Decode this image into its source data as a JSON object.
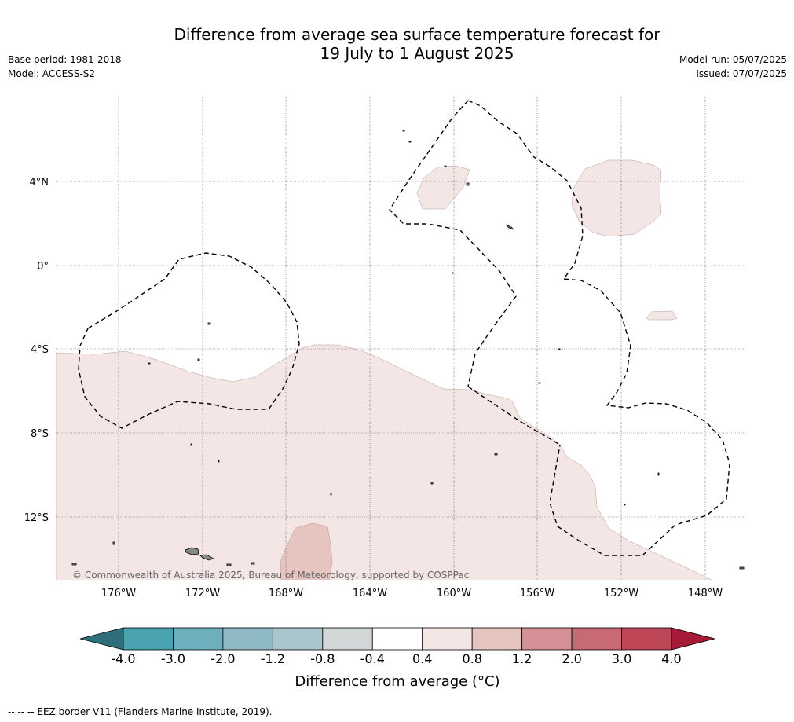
{
  "header": {
    "title_line1": "Difference from average sea surface temperature forecast for",
    "title_line2": "19 July to 1 August 2025",
    "base_period": "Base period: 1981-2018",
    "model": "Model: ACCESS-S2",
    "model_run": "Model run: 05/07/2025",
    "issued": "Issued: 07/07/2025"
  },
  "map": {
    "lat_labels": [
      "4°N",
      "0°",
      "4°S",
      "8°S",
      "12°S"
    ],
    "lon_labels": [
      "176°W",
      "172°W",
      "168°W",
      "164°W",
      "160°W",
      "156°W",
      "152°W",
      "148°W"
    ],
    "copyright": "© Commonwealth of Australia 2025, Bureau of Meteorology, supported by COSPPac",
    "anomaly_colors": {
      "0.4 to 0.8": "#f4e6e5",
      "0.8 to 1.2": "#e6c5c1"
    }
  },
  "colorbar": {
    "ticks": [
      "-4.0",
      "-3.0",
      "-2.0",
      "-1.2",
      "-0.8",
      "-0.4",
      "0.4",
      "0.8",
      "1.2",
      "2.0",
      "3.0",
      "4.0"
    ],
    "colors": [
      "#2e6e7a",
      "#4aa2b1",
      "#6eafbd",
      "#8fb9c4",
      "#aac6cc",
      "#d1d6d7",
      "#ffffff",
      "#f4e6e5",
      "#e6c5c1",
      "#d49095",
      "#c76a75",
      "#bf4656",
      "#a51a37"
    ],
    "label": "Difference from average (°C)"
  },
  "footnote": "--  --  -- EEZ border V11 (Flanders Marine Institute, 2019)."
}
